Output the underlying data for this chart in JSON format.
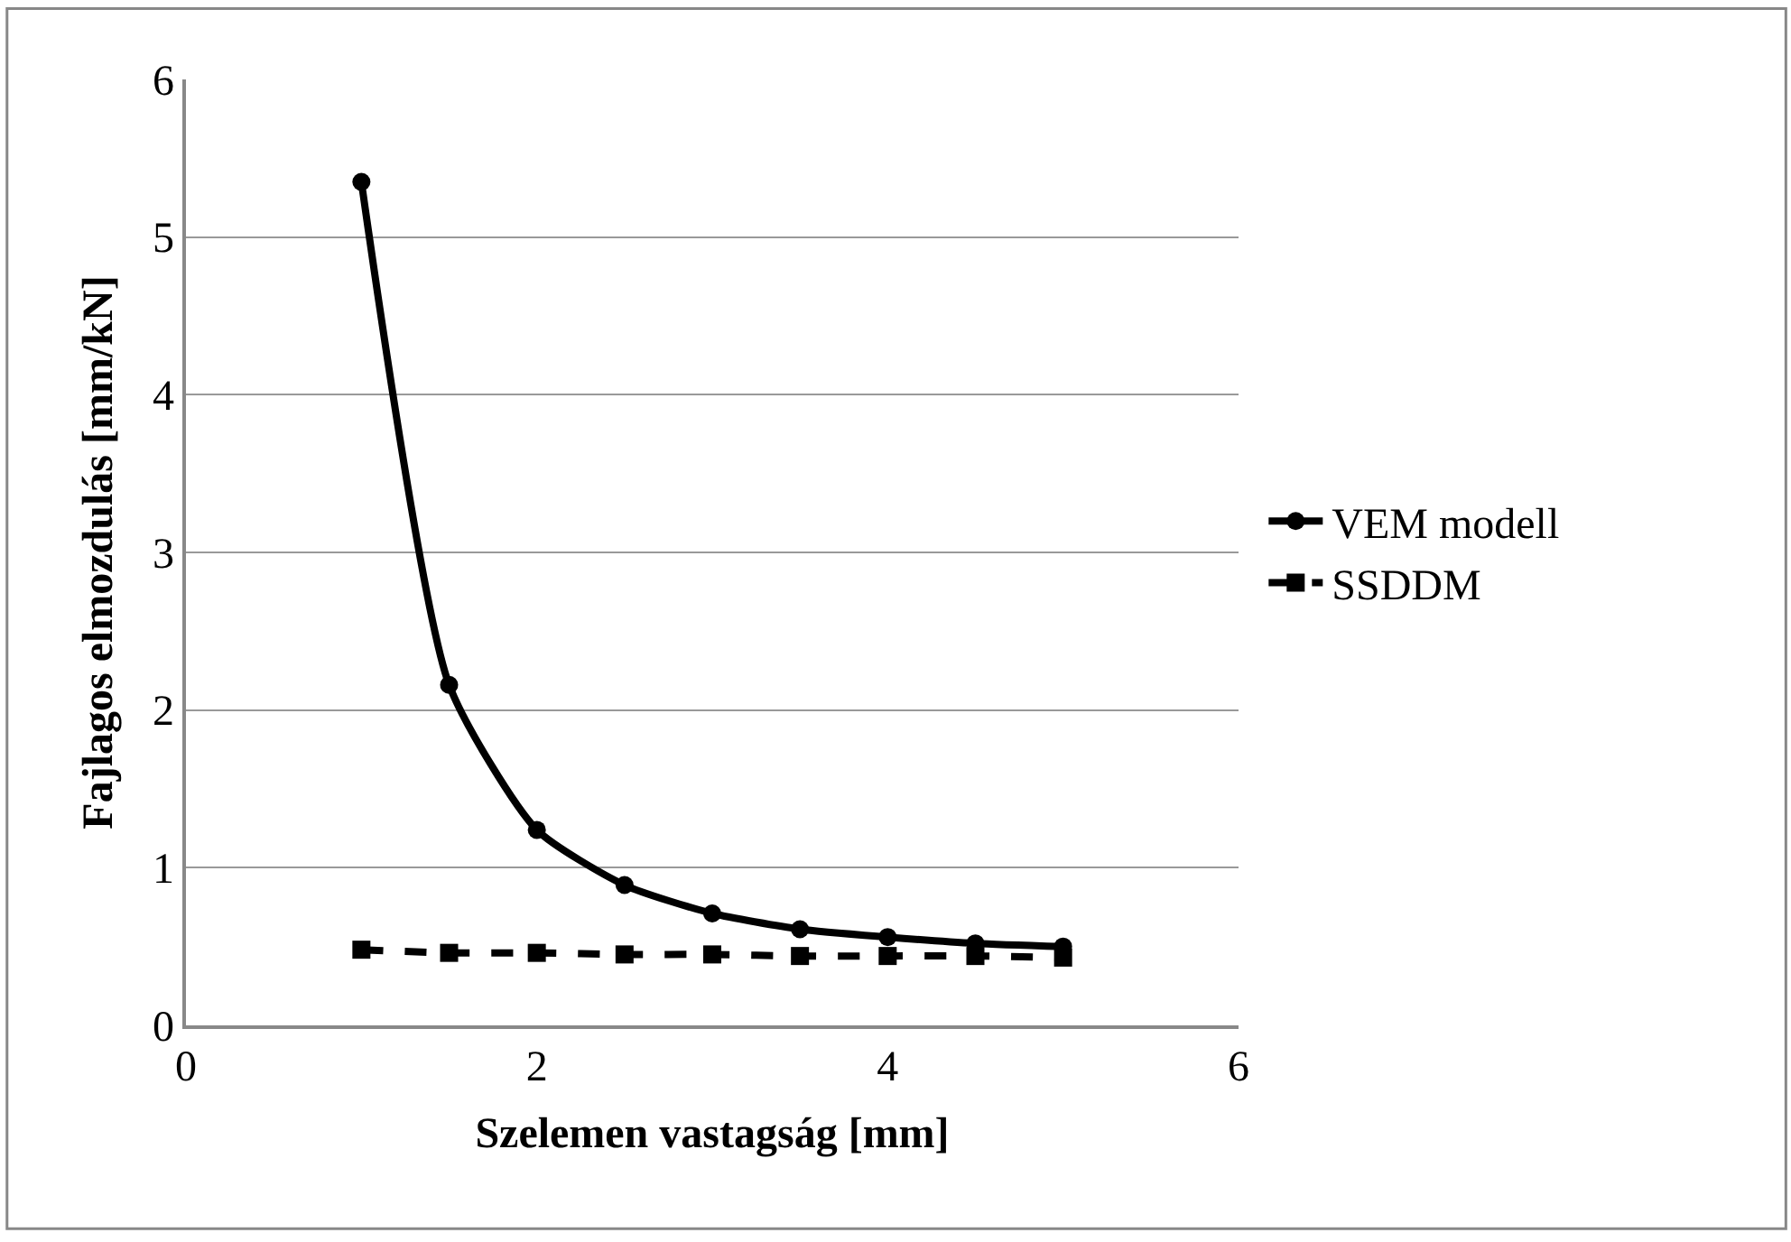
{
  "chart_data": {
    "type": "line",
    "xlabel": "Szelemen vastagság [mm]",
    "ylabel": "Fajlagos elmozdulás [mm/kN]",
    "x": [
      1,
      1.5,
      2,
      2.5,
      3,
      3.5,
      4,
      4.5,
      5
    ],
    "series": [
      {
        "name": "VEM modell",
        "color": "#000000",
        "marker": "circle",
        "line_style": "solid",
        "values": [
          5.35,
          2.16,
          1.24,
          0.89,
          0.71,
          0.61,
          0.56,
          0.52,
          0.5
        ]
      },
      {
        "name": "SSDDM",
        "color": "#000000",
        "marker": "square",
        "line_style": "dashed",
        "values": [
          0.48,
          0.46,
          0.46,
          0.45,
          0.45,
          0.44,
          0.44,
          0.44,
          0.43
        ]
      }
    ],
    "xlim": [
      0,
      6
    ],
    "xticks": [
      0,
      2,
      4,
      6
    ],
    "ylim": [
      0,
      6
    ],
    "yticks": [
      0,
      1,
      2,
      3,
      4,
      5,
      6
    ],
    "grid": "y",
    "legend": "right"
  }
}
